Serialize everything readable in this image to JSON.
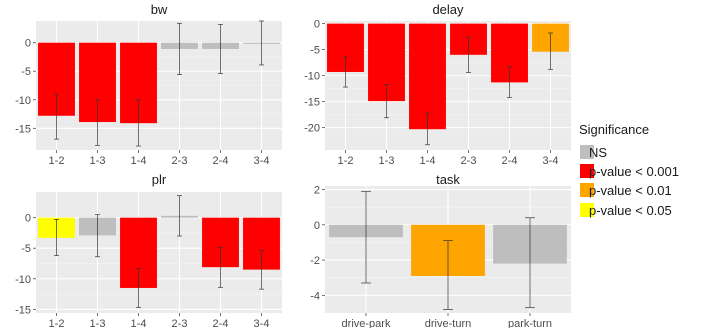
{
  "legend": {
    "title": "Significance",
    "items": [
      {
        "label": "NS",
        "color": "#bebebe"
      },
      {
        "label": "p-value < 0.001",
        "color": "#ff0000"
      },
      {
        "label": "p-value < 0.01",
        "color": "#ffa500"
      },
      {
        "label": "p-value < 0.05",
        "color": "#ffff00"
      }
    ]
  },
  "chart_data": [
    {
      "type": "bar",
      "title": "bw",
      "categories": [
        "1-2",
        "1-3",
        "1-4",
        "2-3",
        "2-4",
        "3-4"
      ],
      "values": [
        -12.8,
        -13.9,
        -14.1,
        -1.1,
        -1.1,
        -0.1
      ],
      "error_low": [
        -16.9,
        -18.0,
        -18.1,
        -5.6,
        -5.4,
        -3.9
      ],
      "error_high": [
        -9.0,
        -10.0,
        -10.0,
        3.4,
        3.2,
        3.8
      ],
      "significance": [
        "p-value < 0.001",
        "p-value < 0.001",
        "p-value < 0.001",
        "NS",
        "NS",
        "NS"
      ],
      "yticks": [
        0,
        -5,
        -10,
        -15
      ],
      "ylim": [
        -18.8,
        3.8
      ],
      "grid": true
    },
    {
      "type": "bar",
      "title": "delay",
      "categories": [
        "1-2",
        "1-3",
        "1-4",
        "2-3",
        "2-4",
        "3-4"
      ],
      "values": [
        -9.3,
        -14.9,
        -20.3,
        -6.0,
        -11.3,
        -5.4
      ],
      "error_low": [
        -12.2,
        -18.1,
        -23.3,
        -9.4,
        -14.2,
        -8.8
      ],
      "error_high": [
        -6.4,
        -11.7,
        -17.2,
        -2.6,
        -8.3,
        -1.8
      ],
      "significance": [
        "p-value < 0.001",
        "p-value < 0.001",
        "p-value < 0.001",
        "p-value < 0.001",
        "p-value < 0.001",
        "p-value < 0.01"
      ],
      "yticks": [
        0,
        -5,
        -10,
        -15,
        -20
      ],
      "ylim": [
        -24.3,
        0.5
      ],
      "grid": true
    },
    {
      "type": "bar",
      "title": "plr",
      "categories": [
        "1-2",
        "1-3",
        "1-4",
        "2-3",
        "2-4",
        "3-4"
      ],
      "values": [
        -3.3,
        -2.9,
        -11.5,
        0.3,
        -8.1,
        -8.5
      ],
      "error_low": [
        -6.2,
        -6.4,
        -14.7,
        -3.0,
        -11.4,
        -11.7
      ],
      "error_high": [
        -0.3,
        0.5,
        -8.3,
        3.6,
        -4.9,
        -5.4
      ],
      "significance": [
        "p-value < 0.05",
        "NS",
        "p-value < 0.001",
        "NS",
        "p-value < 0.001",
        "p-value < 0.001"
      ],
      "yticks": [
        0,
        -5,
        -10,
        -15
      ],
      "ylim": [
        -15.6,
        4.2
      ],
      "grid": true
    },
    {
      "type": "bar",
      "title": "task",
      "categories": [
        "drive-park",
        "drive-turn",
        "park-turn"
      ],
      "values": [
        -0.7,
        -2.9,
        -2.2
      ],
      "error_low": [
        -3.3,
        -4.8,
        -4.7
      ],
      "error_high": [
        1.9,
        -0.9,
        0.4
      ],
      "significance": [
        "NS",
        "p-value < 0.01",
        "NS"
      ],
      "yticks": [
        2,
        0,
        -2,
        -4
      ],
      "ylim": [
        -5.0,
        2.2
      ],
      "grid": true
    }
  ]
}
